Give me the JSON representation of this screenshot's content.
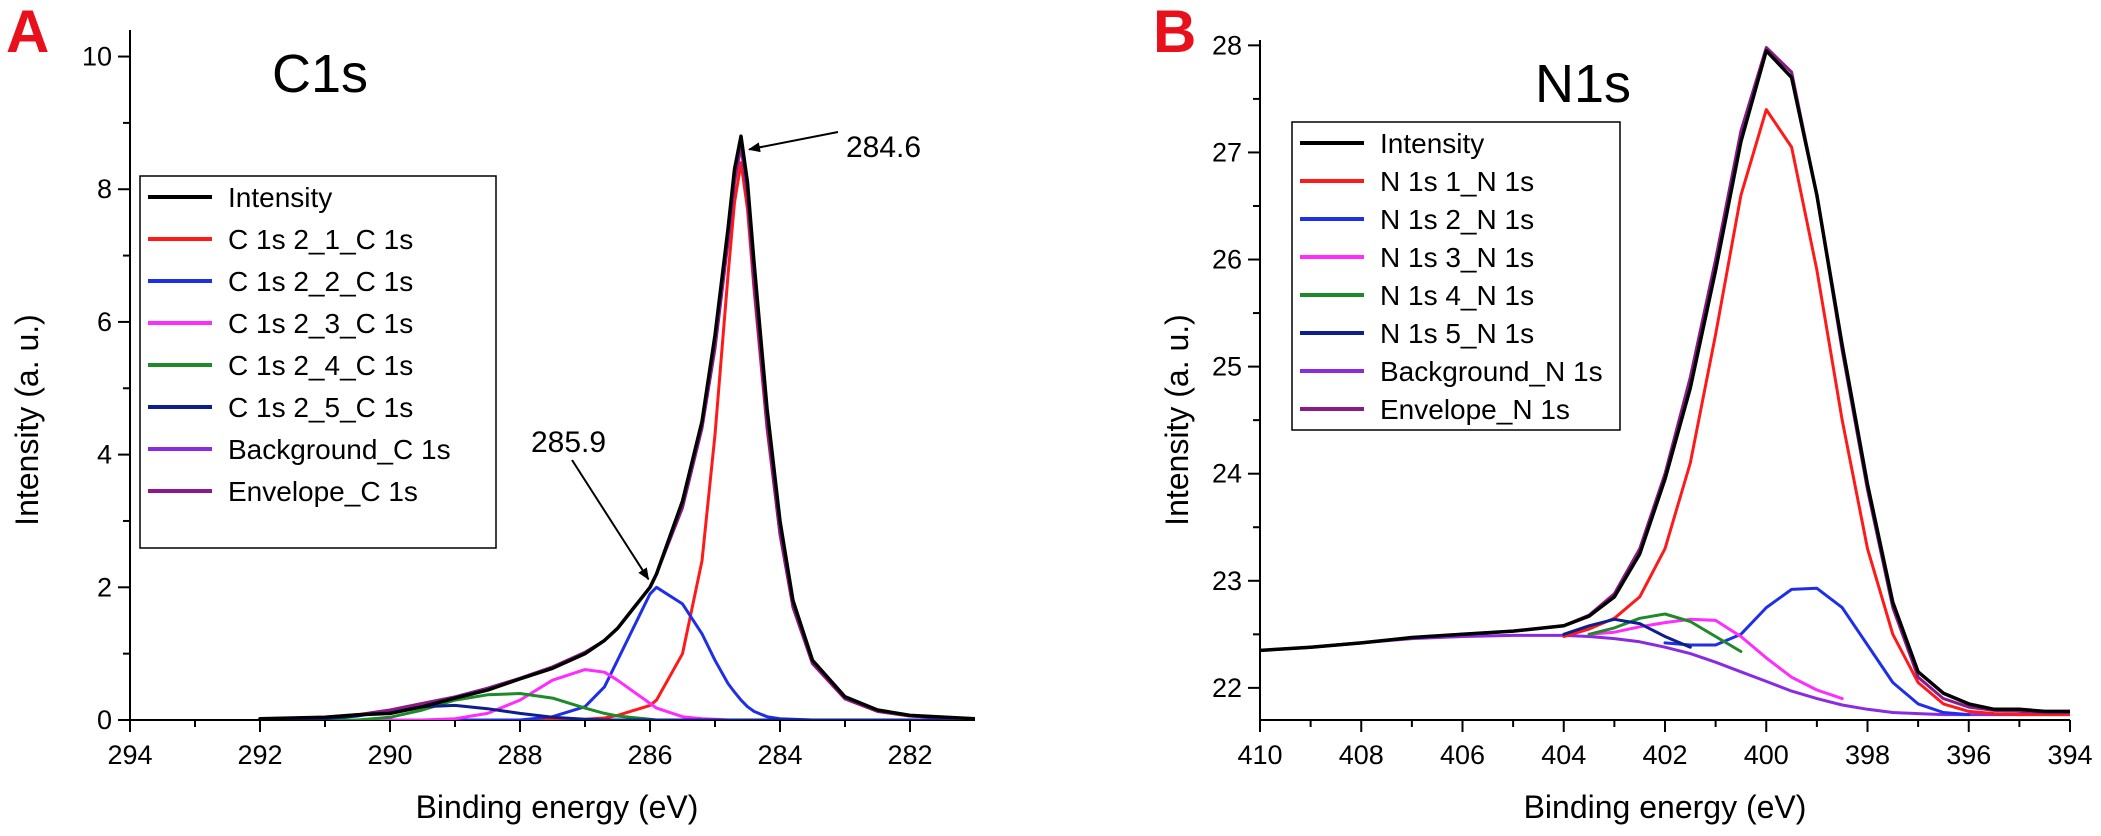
{
  "panels": [
    {
      "letter": "A",
      "title": "C1s",
      "xlabel": "Binding energy (eV)",
      "ylabel": "Intensity (a. u.)",
      "legend": [
        "Intensity",
        "C 1s 2_1_C 1s",
        "C 1s 2_2_C 1s",
        "C 1s 2_3_C 1s",
        "C 1s 2_4_C 1s",
        "C 1s 2_5_C 1s",
        "Background_C 1s",
        "Envelope_C 1s"
      ],
      "annotations": [
        {
          "text": "284.6",
          "x": 284.6,
          "y": 8.6
        },
        {
          "text": "285.9",
          "x": 285.9,
          "y": 2.0
        }
      ]
    },
    {
      "letter": "B",
      "title": "N1s",
      "xlabel": "Binding energy (eV)",
      "ylabel": "Intensity (a. u.)",
      "legend": [
        "Intensity",
        "N 1s  1_N 1s",
        "N 1s  2_N 1s",
        "N 1s  3_N 1s",
        "N 1s  4_N 1s",
        "N 1s  5_N 1s",
        "Background_N 1s",
        "Envelope_N 1s"
      ],
      "annotations": []
    }
  ],
  "colors": {
    "intensity": "#000000",
    "peak1": "#ff1a1a",
    "peak2": "#1f2fe8",
    "peak3": "#ff2cff",
    "peak4": "#1f8a2a",
    "peak5": "#0d1f8c",
    "background": "#8a2be2",
    "envelope": "#8b1a8b",
    "panel_letter": "#e8101a"
  },
  "chart_data": [
    {
      "type": "line",
      "title": "C1s",
      "xlabel": "Binding energy (eV)",
      "ylabel": "Intensity (a. u.)",
      "xlim": [
        294,
        281
      ],
      "ylim": [
        0,
        10.4
      ],
      "xticks": [
        294,
        292,
        290,
        288,
        286,
        284,
        282
      ],
      "yticks": [
        0,
        2,
        4,
        6,
        8,
        10
      ],
      "x_reversed": true,
      "legend_position": "left",
      "grid": false,
      "x": [
        292,
        291,
        290.5,
        290,
        289.5,
        289,
        288.5,
        288,
        287.5,
        287,
        286.7,
        286.5,
        286,
        285.9,
        285.5,
        285.2,
        285,
        284.8,
        284.7,
        284.6,
        284.5,
        284.4,
        284.2,
        284,
        283.8,
        283.5,
        283,
        282.5,
        282,
        281
      ],
      "series": [
        {
          "name": "Intensity",
          "values": [
            0.02,
            0.04,
            0.08,
            0.1,
            0.2,
            0.33,
            0.45,
            0.62,
            0.78,
            1.0,
            1.2,
            1.38,
            2.0,
            2.2,
            3.3,
            4.5,
            5.8,
            7.4,
            8.3,
            8.8,
            8.1,
            6.9,
            4.7,
            3.0,
            1.8,
            0.9,
            0.35,
            0.15,
            0.07,
            0.02
          ]
        },
        {
          "name": "C 1s 2_1_C 1s",
          "values": [
            0,
            0,
            0,
            0,
            0,
            0,
            0,
            0,
            0,
            0.01,
            0.03,
            0.07,
            0.22,
            0.3,
            1.0,
            2.4,
            4.3,
            6.7,
            7.8,
            8.4,
            7.7,
            6.5,
            4.4,
            2.8,
            1.7,
            0.85,
            0.32,
            0.13,
            0.06,
            0.01
          ]
        },
        {
          "name": "C 1s 2_2_C 1s",
          "values": [
            0,
            0,
            0,
            0,
            0,
            0,
            0,
            0,
            0.05,
            0.2,
            0.5,
            0.9,
            1.9,
            2.0,
            1.75,
            1.3,
            0.9,
            0.55,
            0.42,
            0.3,
            0.2,
            0.13,
            0.05,
            0.02,
            0.01,
            0,
            0,
            0,
            0,
            0
          ]
        },
        {
          "name": "C 1s 2_3_C 1s",
          "values": [
            0,
            0,
            0,
            0,
            0,
            0.02,
            0.1,
            0.3,
            0.6,
            0.76,
            0.72,
            0.6,
            0.25,
            0.18,
            0.05,
            0.02,
            0.01,
            0,
            0,
            0,
            0,
            0,
            0,
            0,
            0,
            0,
            0,
            0,
            0,
            0
          ]
        },
        {
          "name": "C 1s 2_4_C 1s",
          "values": [
            0,
            0,
            0,
            0.04,
            0.15,
            0.3,
            0.38,
            0.4,
            0.33,
            0.18,
            0.1,
            0.06,
            0.01,
            0,
            0,
            0,
            0,
            0,
            0,
            0,
            0,
            0,
            0,
            0,
            0,
            0,
            0,
            0,
            0,
            0
          ]
        },
        {
          "name": "C 1s 2_5_C 1s",
          "values": [
            0,
            0.02,
            0.06,
            0.14,
            0.2,
            0.22,
            0.17,
            0.1,
            0.04,
            0.01,
            0,
            0,
            0,
            0,
            0,
            0,
            0,
            0,
            0,
            0,
            0,
            0,
            0,
            0,
            0,
            0,
            0,
            0,
            0,
            0
          ]
        },
        {
          "name": "Background_C 1s",
          "values": [
            0,
            0,
            0,
            0,
            0,
            0,
            0,
            0,
            0,
            0,
            0,
            0,
            0,
            0,
            0,
            0,
            0,
            0,
            0,
            0,
            0,
            0,
            0,
            0,
            0,
            0,
            0,
            0,
            0,
            0
          ]
        },
        {
          "name": "Envelope_C 1s",
          "values": [
            0.02,
            0.04,
            0.08,
            0.15,
            0.25,
            0.35,
            0.48,
            0.63,
            0.8,
            1.02,
            1.2,
            1.38,
            2.0,
            2.2,
            3.2,
            4.4,
            5.6,
            7.2,
            8.1,
            8.65,
            7.9,
            6.6,
            4.45,
            2.8,
            1.7,
            0.85,
            0.32,
            0.13,
            0.06,
            0.01
          ]
        }
      ]
    },
    {
      "type": "line",
      "title": "N1s",
      "xlabel": "Binding energy (eV)",
      "ylabel": "Intensity (a. u.)",
      "xlim": [
        410,
        394
      ],
      "ylim": [
        21.7,
        28.05
      ],
      "xticks": [
        410,
        408,
        406,
        404,
        402,
        400,
        398,
        396,
        394
      ],
      "yticks": [
        22,
        23,
        24,
        25,
        26,
        27,
        28
      ],
      "x_reversed": true,
      "legend_position": "top-left",
      "grid": false,
      "x": [
        410,
        409,
        408,
        407,
        406,
        405,
        404,
        403.5,
        403,
        402.5,
        402,
        401.5,
        401,
        400.5,
        400,
        399.5,
        399,
        398.5,
        398,
        397.5,
        397,
        396.5,
        396,
        395.5,
        395,
        394.5,
        394
      ],
      "series": [
        {
          "name": "Intensity",
          "values": [
            22.35,
            22.38,
            22.42,
            22.47,
            22.5,
            22.53,
            22.58,
            22.67,
            22.85,
            23.25,
            23.95,
            24.8,
            25.9,
            27.1,
            27.95,
            27.7,
            26.6,
            25.2,
            23.9,
            22.8,
            22.15,
            21.95,
            21.85,
            21.8,
            21.8,
            21.78,
            21.78
          ]
        },
        {
          "name": "N 1s  1_N 1s",
          "values": [
            null,
            null,
            null,
            null,
            null,
            null,
            22.48,
            22.55,
            22.65,
            22.85,
            23.3,
            24.1,
            25.3,
            26.6,
            27.4,
            27.05,
            25.9,
            24.5,
            23.3,
            22.5,
            22.05,
            21.85,
            21.78,
            21.76,
            21.75,
            21.75,
            21.75
          ]
        },
        {
          "name": "N 1s  2_N 1s",
          "values": [
            null,
            null,
            null,
            null,
            null,
            null,
            null,
            null,
            null,
            null,
            22.42,
            22.4,
            22.4,
            22.5,
            22.75,
            22.92,
            22.93,
            22.75,
            22.4,
            22.05,
            21.85,
            21.77,
            21.75,
            null,
            null,
            null,
            null
          ]
        },
        {
          "name": "N 1s  3_N 1s",
          "values": [
            null,
            null,
            null,
            null,
            null,
            null,
            null,
            22.5,
            22.52,
            22.57,
            22.61,
            22.64,
            22.63,
            22.48,
            22.28,
            22.1,
            21.98,
            21.9,
            null,
            null,
            null,
            null,
            null,
            null,
            null,
            null,
            null
          ]
        },
        {
          "name": "N 1s  4_N 1s",
          "values": [
            null,
            null,
            null,
            null,
            null,
            null,
            null,
            22.5,
            22.56,
            22.65,
            22.69,
            22.62,
            22.48,
            22.34,
            null,
            null,
            null,
            null,
            null,
            null,
            null,
            null,
            null,
            null,
            null,
            null,
            null
          ]
        },
        {
          "name": "N 1s  5_N 1s",
          "values": [
            null,
            null,
            null,
            null,
            null,
            null,
            22.5,
            22.58,
            22.64,
            22.6,
            22.48,
            22.38,
            null,
            null,
            null,
            null,
            null,
            null,
            null,
            null,
            null,
            null,
            null,
            null,
            null,
            null,
            null
          ]
        },
        {
          "name": "Background_N 1s",
          "values": [
            22.35,
            22.38,
            22.42,
            22.46,
            22.48,
            22.49,
            22.49,
            22.48,
            22.46,
            22.43,
            22.38,
            22.32,
            22.24,
            22.15,
            22.06,
            21.97,
            21.9,
            21.84,
            21.8,
            21.77,
            21.76,
            21.75,
            21.75,
            21.75,
            21.75,
            21.76,
            21.77
          ]
        },
        {
          "name": "Envelope_N 1s",
          "values": [
            22.35,
            22.38,
            22.42,
            22.47,
            22.5,
            22.53,
            22.58,
            22.68,
            22.88,
            23.3,
            24.0,
            24.9,
            26.0,
            27.2,
            27.98,
            27.75,
            26.6,
            25.15,
            23.85,
            22.75,
            22.1,
            21.9,
            21.82,
            21.79,
            21.78,
            21.77,
            21.77
          ]
        }
      ]
    }
  ]
}
